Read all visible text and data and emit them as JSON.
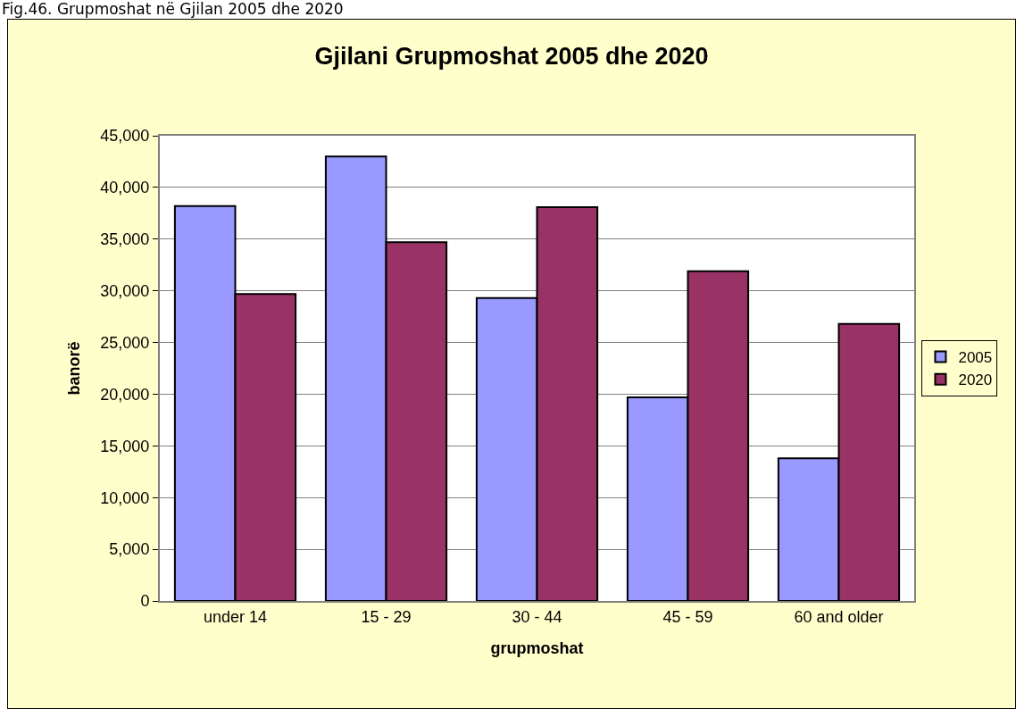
{
  "chart_data": {
    "type": "bar",
    "title": "Gjilani Grupmoshat 2005 dhe 2020",
    "xlabel": "grupmoshat",
    "ylabel": "banorë",
    "annotations": [
      "Fig.46. Grupmoshat në Gjilan 2005 dhe 2020"
    ],
    "categories": [
      "under 14",
      "15 - 29",
      "30 - 44",
      "45 - 59",
      "60 and older"
    ],
    "series": [
      {
        "name": "2005",
        "color": "#9999ff",
        "values": [
          38200,
          43000,
          29300,
          19700,
          13800
        ]
      },
      {
        "name": "2020",
        "color": "#993366",
        "values": [
          29700,
          34700,
          38100,
          31900,
          26800
        ]
      }
    ],
    "ylim": [
      0,
      45000
    ],
    "yticks": [
      {
        "value": 0,
        "label": "0"
      },
      {
        "value": 5000,
        "label": "5,000"
      },
      {
        "value": 10000,
        "label": "10,000"
      },
      {
        "value": 15000,
        "label": "15,000"
      },
      {
        "value": 20000,
        "label": "20,000"
      },
      {
        "value": 25000,
        "label": "25,000"
      },
      {
        "value": 30000,
        "label": "30,000"
      },
      {
        "value": 35000,
        "label": "35,000"
      },
      {
        "value": 40000,
        "label": "40,000"
      },
      {
        "value": 45000,
        "label": "45,000"
      }
    ],
    "grid": "y",
    "legend": "right"
  }
}
